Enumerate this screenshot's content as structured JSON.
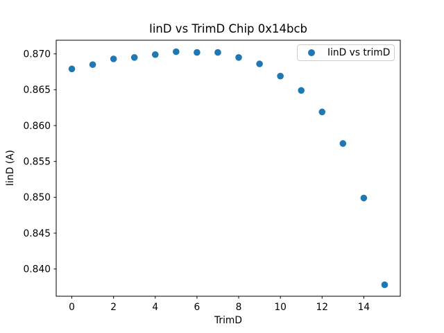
{
  "chart_data": {
    "type": "scatter",
    "title": "IinD vs TrimD Chip 0x14bcb",
    "xlabel": "TrimD",
    "ylabel": "IinD (A)",
    "series": [
      {
        "name": "IinD vs trimD",
        "color": "#1f77b4",
        "marker": "circle",
        "x": [
          0,
          1,
          2,
          3,
          4,
          5,
          6,
          7,
          8,
          9,
          10,
          11,
          12,
          13,
          14,
          15
        ],
        "y": [
          0.8679,
          0.8685,
          0.8693,
          0.8695,
          0.8699,
          0.8703,
          0.8702,
          0.8702,
          0.8695,
          0.8686,
          0.8669,
          0.8649,
          0.8619,
          0.8575,
          0.8499,
          0.8378
        ]
      }
    ],
    "xlim": [
      -0.75,
      15.75
    ],
    "ylim": [
      0.8362,
      0.8719
    ],
    "xticks": [
      0,
      2,
      4,
      6,
      8,
      10,
      12,
      14
    ],
    "xtick_labels": [
      "0",
      "2",
      "4",
      "6",
      "8",
      "10",
      "12",
      "14"
    ],
    "yticks": [
      0.84,
      0.845,
      0.85,
      0.855,
      0.86,
      0.865,
      0.87
    ],
    "ytick_labels": [
      "0.840",
      "0.845",
      "0.850",
      "0.855",
      "0.860",
      "0.865",
      "0.870"
    ],
    "grid": false,
    "legend": {
      "position": "upper right",
      "labels": [
        "IinD vs trimD"
      ]
    },
    "colors": {
      "marker": "#1f77b4",
      "spine": "#000000",
      "background": "#ffffff",
      "legend_border": "#cccccc"
    }
  }
}
